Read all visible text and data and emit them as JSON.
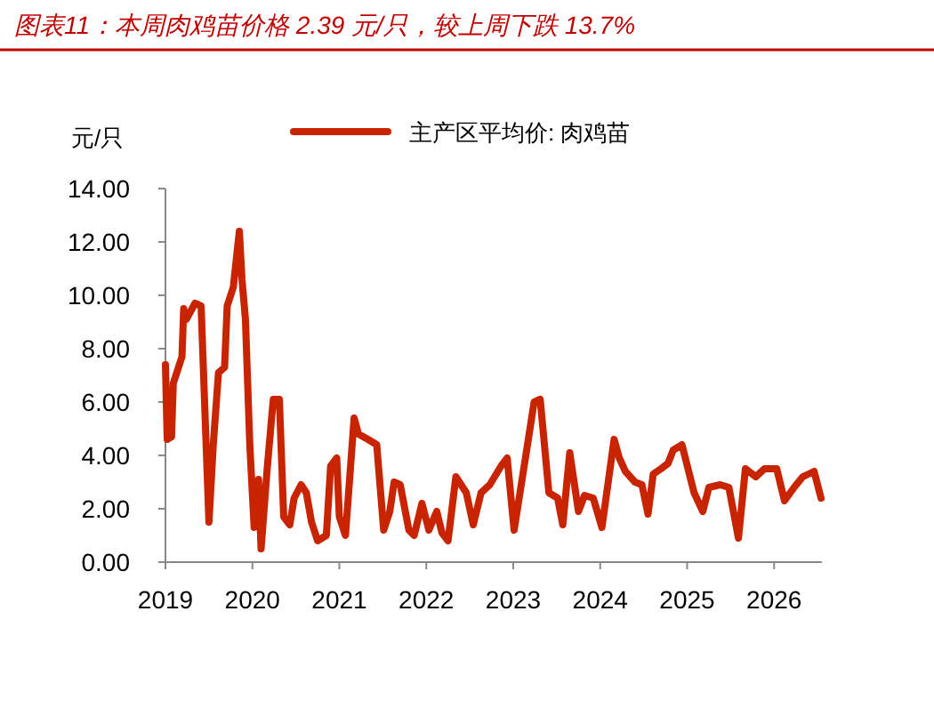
{
  "chart_data": {
    "type": "line",
    "title": "图表11：本周肉鸡苗价格 2.39 元/只，较上周下跌 13.7%",
    "ylabel": "元/只",
    "x": [
      2019.0,
      2019.02,
      2019.07,
      2019.09,
      2019.19,
      2019.21,
      2019.24,
      2019.34,
      2019.41,
      2019.5,
      2019.55,
      2019.61,
      2019.68,
      2019.71,
      2019.78,
      2019.85,
      2019.88,
      2019.92,
      2019.97,
      2020.02,
      2020.07,
      2020.1,
      2020.17,
      2020.24,
      2020.31,
      2020.36,
      2020.43,
      2020.48,
      2020.56,
      2020.62,
      2020.68,
      2020.75,
      2020.85,
      2020.9,
      2020.97,
      2021.0,
      2021.07,
      2021.17,
      2021.22,
      2021.33,
      2021.43,
      2021.51,
      2021.58,
      2021.63,
      2021.7,
      2021.8,
      2021.86,
      2021.95,
      2022.03,
      2022.12,
      2022.18,
      2022.25,
      2022.34,
      2022.46,
      2022.54,
      2022.63,
      2022.73,
      2022.86,
      2022.93,
      2023.01,
      2023.14,
      2023.24,
      2023.31,
      2023.41,
      2023.51,
      2023.57,
      2023.65,
      2023.75,
      2023.82,
      2023.92,
      2024.02,
      2024.16,
      2024.22,
      2024.29,
      2024.4,
      2024.48,
      2024.55,
      2024.61,
      2024.7,
      2024.78,
      2024.84,
      2024.94,
      2025.08,
      2025.18,
      2025.25,
      2025.38,
      2025.48,
      2025.59,
      2025.67,
      2025.79,
      2025.89,
      2026.03,
      2026.12,
      2026.23,
      2026.33,
      2026.46,
      2026.54
    ],
    "series": [
      {
        "name": "主产区平均价: 肉鸡苗",
        "color": "#c82400",
        "values": [
          7.4,
          4.6,
          4.7,
          6.7,
          7.7,
          9.5,
          9.1,
          9.7,
          9.6,
          1.5,
          4.4,
          7.1,
          7.3,
          9.6,
          10.3,
          12.4,
          10.6,
          9.1,
          4.4,
          1.3,
          3.1,
          0.5,
          3.5,
          6.1,
          6.1,
          1.7,
          1.4,
          2.4,
          2.9,
          2.6,
          1.5,
          0.8,
          1.0,
          3.6,
          3.9,
          1.7,
          1.0,
          5.4,
          4.8,
          4.6,
          4.4,
          1.2,
          1.9,
          3.0,
          2.9,
          1.2,
          1.0,
          2.2,
          1.2,
          1.9,
          1.1,
          0.8,
          3.2,
          2.6,
          1.4,
          2.6,
          2.9,
          3.6,
          3.9,
          1.2,
          3.9,
          6.0,
          6.1,
          2.6,
          2.4,
          1.4,
          4.1,
          1.9,
          2.5,
          2.4,
          1.3,
          4.6,
          3.9,
          3.4,
          3.0,
          2.9,
          1.8,
          3.3,
          3.5,
          3.7,
          4.2,
          4.4,
          2.6,
          1.9,
          2.8,
          2.9,
          2.8,
          0.9,
          3.5,
          3.2,
          3.5,
          3.5,
          2.3,
          2.8,
          3.2,
          3.4,
          2.4
        ]
      }
    ],
    "xlim": [
      2019,
      2026.55
    ],
    "xticks": [
      2019,
      2020,
      2021,
      2022,
      2023,
      2024,
      2025,
      2026
    ],
    "ylim": [
      0,
      14
    ],
    "yticks": [
      {
        "value": 0,
        "label": "0.00"
      },
      {
        "value": 2,
        "label": "2.00"
      },
      {
        "value": 4,
        "label": "4.00"
      },
      {
        "value": 6,
        "label": "6.00"
      },
      {
        "value": 8,
        "label": "8.00"
      },
      {
        "value": 10,
        "label": "10.00"
      },
      {
        "value": 12,
        "label": "12.00"
      },
      {
        "value": 14,
        "label": "14.00"
      }
    ],
    "legend": "top",
    "grid": false
  }
}
